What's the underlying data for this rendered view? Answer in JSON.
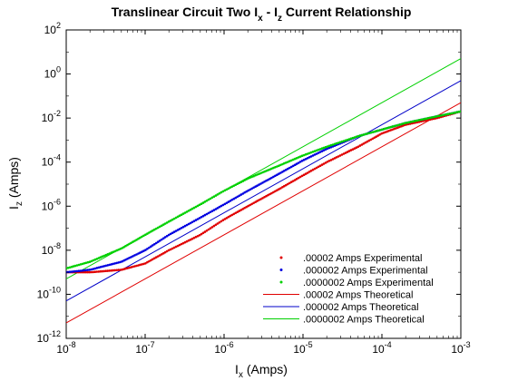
{
  "chart_data": {
    "type": "line",
    "title_parts": [
      "Translinear Circuit Two I",
      "x",
      " - I",
      "z",
      " Current Relationship"
    ],
    "xlabel_parts": [
      "I",
      "x",
      " (Amps)"
    ],
    "ylabel_parts": [
      "I",
      "z",
      " (Amps)"
    ],
    "xscale": "log",
    "yscale": "log",
    "xlim": [
      1e-08,
      0.001
    ],
    "ylim": [
      1e-12,
      100.0
    ],
    "xticks": [
      {
        "base": "10",
        "exp": "-8",
        "value": 1e-08
      },
      {
        "base": "10",
        "exp": "-7",
        "value": 1e-07
      },
      {
        "base": "10",
        "exp": "-6",
        "value": 1e-06
      },
      {
        "base": "10",
        "exp": "-5",
        "value": 1e-05
      },
      {
        "base": "10",
        "exp": "-4",
        "value": 0.0001
      },
      {
        "base": "10",
        "exp": "-3",
        "value": 0.001
      }
    ],
    "yticks": [
      {
        "base": "10",
        "exp": "-12",
        "value": 1e-12
      },
      {
        "base": "10",
        "exp": "-10",
        "value": 1e-10
      },
      {
        "base": "10",
        "exp": "-8",
        "value": 1e-08
      },
      {
        "base": "10",
        "exp": "-6",
        "value": 1e-06
      },
      {
        "base": "10",
        "exp": "-4",
        "value": 0.0001
      },
      {
        "base": "10",
        "exp": "-2",
        "value": 0.01
      },
      {
        "base": "10",
        "exp": "0",
        "value": 1.0
      },
      {
        "base": "10",
        "exp": "2",
        "value": 100.0
      }
    ],
    "legend_placement": "bottom-right",
    "grid": false,
    "series": [
      {
        "name": ".00002 Amps Experimental",
        "style": "points",
        "color": "#e00000",
        "x": [
          1e-08,
          2e-08,
          5e-08,
          1e-07,
          2e-07,
          5e-07,
          1e-06,
          2e-06,
          5e-06,
          1e-05,
          2e-05,
          5e-05,
          0.0001,
          0.0002,
          0.0005,
          0.001
        ],
        "y": [
          1e-09,
          1e-09,
          1.3e-09,
          2.5e-09,
          1e-08,
          5e-08,
          2.5e-07,
          1e-06,
          6e-06,
          2.5e-05,
          0.0001,
          0.0005,
          0.002,
          0.005,
          0.01,
          0.02
        ]
      },
      {
        "name": ".000002 Amps Experimental",
        "style": "points",
        "color": "#0000e0",
        "x": [
          1e-08,
          2e-08,
          5e-08,
          1e-07,
          2e-07,
          5e-07,
          1e-06,
          2e-06,
          5e-06,
          1e-05,
          2e-05,
          5e-05,
          0.0001,
          0.0002,
          0.0005,
          0.001
        ],
        "y": [
          1e-09,
          1.3e-09,
          3e-09,
          1e-08,
          5e-08,
          3e-07,
          1.2e-06,
          5e-06,
          3e-05,
          0.00012,
          0.0004,
          0.0015,
          0.003,
          0.006,
          0.012,
          0.02
        ]
      },
      {
        "name": ".0000002 Amps Experimental",
        "style": "points",
        "color": "#00d000",
        "x": [
          1e-08,
          2e-08,
          5e-08,
          1e-07,
          2e-07,
          5e-07,
          1e-06,
          2e-06,
          5e-06,
          1e-05,
          2e-05,
          5e-05,
          0.0001,
          0.0002,
          0.0005,
          0.001
        ],
        "y": [
          1.5e-09,
          3e-09,
          1.2e-08,
          5e-08,
          2e-07,
          1.2e-06,
          5e-06,
          1.8e-05,
          7e-05,
          0.0002,
          0.0005,
          0.0015,
          0.003,
          0.006,
          0.012,
          0.02
        ]
      },
      {
        "name": ".00002 Amps Theoretical",
        "style": "line",
        "color": "#e00000",
        "x": [
          1e-08,
          0.001
        ],
        "y": [
          5e-12,
          0.05
        ]
      },
      {
        "name": ".000002 Amps Theoretical",
        "style": "line",
        "color": "#0000c8",
        "x": [
          1e-08,
          0.001
        ],
        "y": [
          5e-11,
          0.5
        ]
      },
      {
        "name": ".0000002 Amps Theoretical",
        "style": "line",
        "color": "#00d000",
        "x": [
          1e-08,
          0.001
        ],
        "y": [
          5e-10,
          5.0
        ]
      }
    ]
  }
}
